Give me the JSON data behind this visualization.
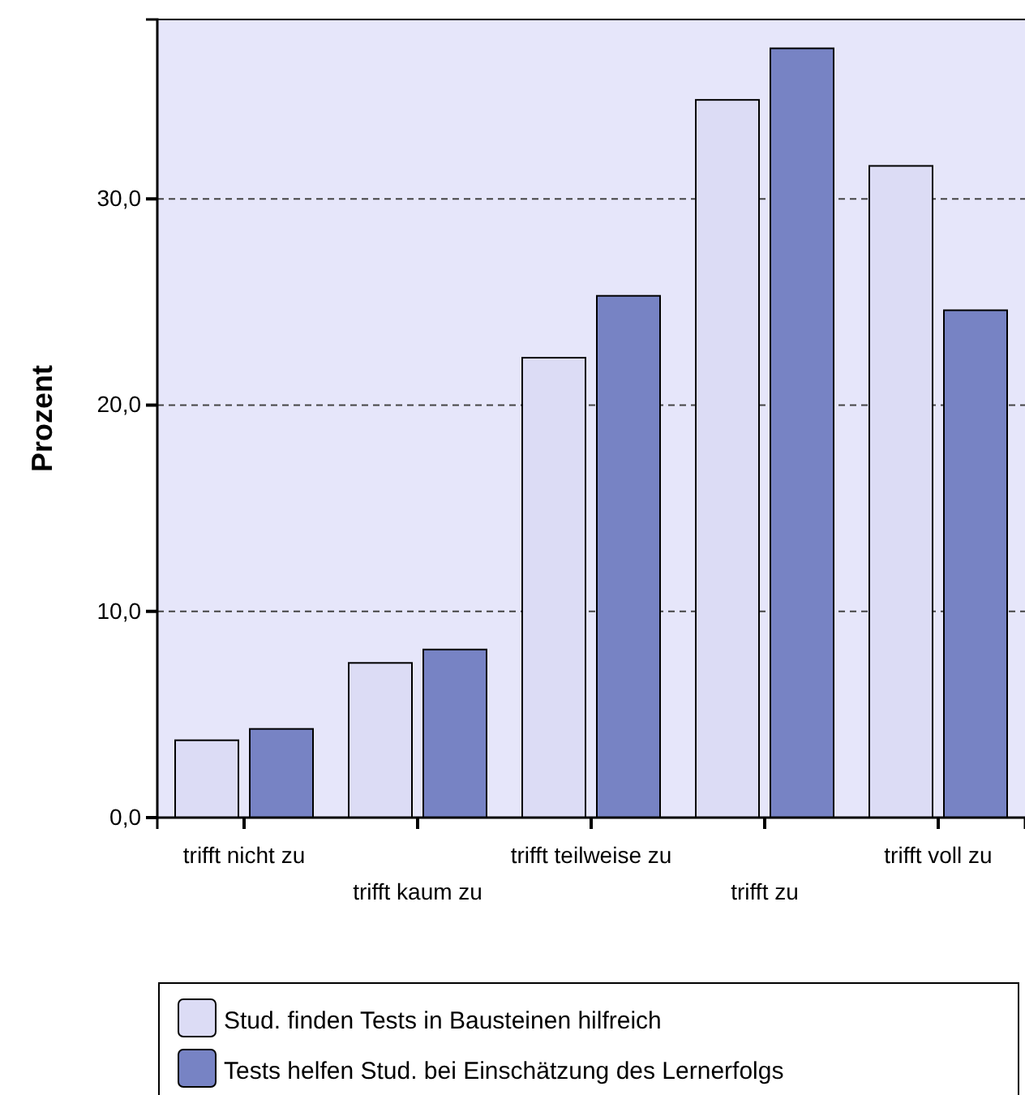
{
  "chart_data": {
    "type": "bar",
    "ylabel": "Prozent",
    "categories": [
      "trifft nicht zu",
      "trifft kaum zu",
      "trifft teilweise zu",
      "trifft zu",
      "trifft voll zu"
    ],
    "series": [
      {
        "name": "Stud. finden Tests in Bausteinen hilfreich",
        "color": "#dcdcf5",
        "values": [
          3.75,
          7.5,
          22.3,
          34.8,
          31.6
        ]
      },
      {
        "name": "Tests helfen Stud. bei Einschätzung des Lernerfolgs",
        "color": "#7783c4",
        "values": [
          4.3,
          8.15,
          25.3,
          37.3,
          24.6
        ]
      }
    ],
    "ylim": [
      0,
      38.7
    ],
    "yticks": [
      {
        "value": 0,
        "label": "0,0"
      },
      {
        "value": 10,
        "label": "10,0"
      },
      {
        "value": 20,
        "label": "20,0"
      },
      {
        "value": 30,
        "label": "30,0"
      }
    ],
    "grid": "y",
    "legend": "bottom"
  }
}
